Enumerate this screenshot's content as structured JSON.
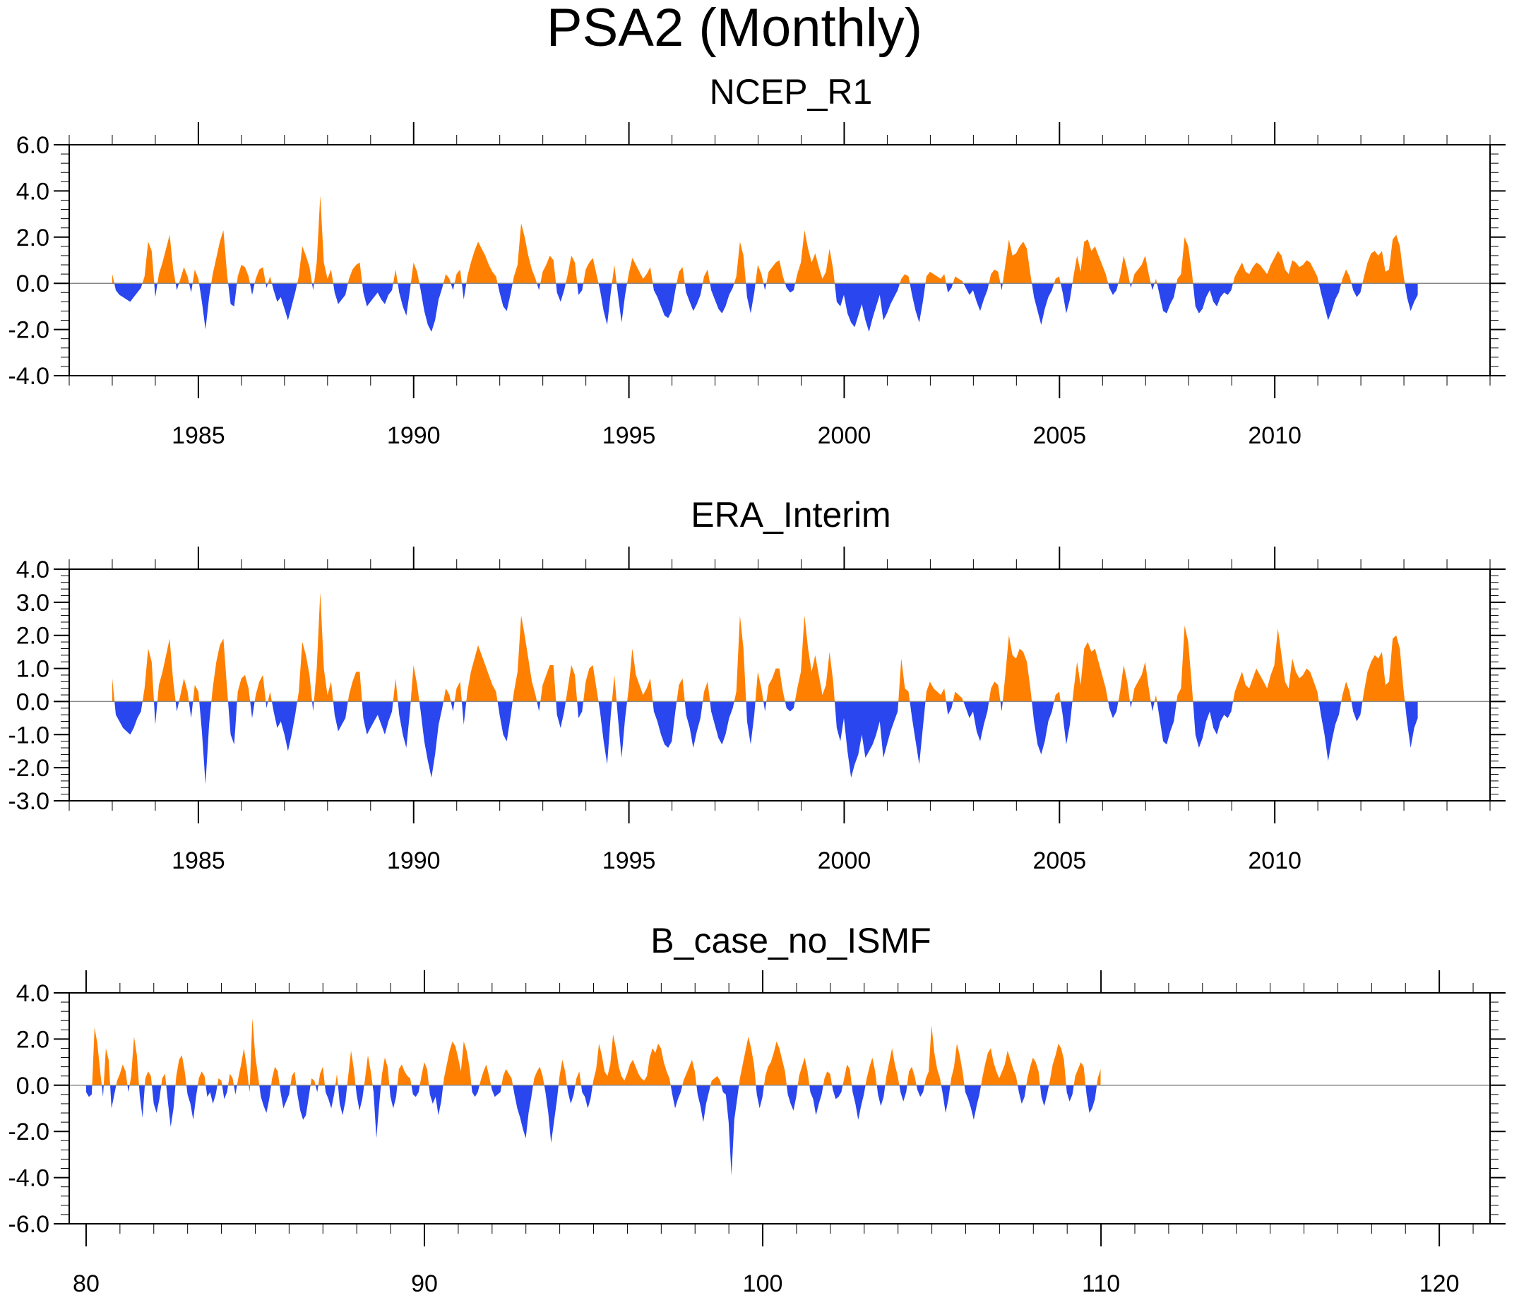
{
  "figure_title": "PSA2 (Monthly)",
  "colors": {
    "positive": "#ff8000",
    "negative": "#2a46ee",
    "frame": "#000000"
  },
  "chart_data": [
    {
      "type": "area",
      "title": "NCEP_R1",
      "xlabel": "",
      "ylabel": "",
      "xlim": [
        1982.0,
        2015.0
      ],
      "ylim": [
        -4.0,
        6.0
      ],
      "yticks": [
        6.0,
        4.0,
        2.0,
        0.0,
        -2.0,
        -4.0
      ],
      "ytick_labels": [
        "6.0",
        "4.0",
        "2.0",
        "0.0",
        "-2.0",
        "-4.0"
      ],
      "xticks": [
        1985,
        1990,
        1995,
        2000,
        2005,
        2010
      ],
      "xtick_labels": [
        "1985",
        "1990",
        "1995",
        "2000",
        "2005",
        "2010"
      ],
      "fill_above_zero": "positive",
      "fill_below_zero": "negative",
      "x_start": 1983.0,
      "x_step": 0.0833,
      "values": [
        0.4,
        -0.3,
        -0.5,
        -0.6,
        -0.7,
        -0.8,
        -0.6,
        -0.4,
        -0.2,
        0.3,
        1.8,
        1.4,
        -0.6,
        0.4,
        0.9,
        1.5,
        2.1,
        0.6,
        -0.3,
        0.2,
        0.7,
        0.3,
        -0.4,
        0.6,
        0.2,
        -0.8,
        -2.0,
        -0.6,
        0.4,
        1.1,
        1.8,
        2.3,
        0.4,
        -0.9,
        -1.0,
        0.3,
        0.8,
        0.7,
        0.3,
        -0.5,
        0.2,
        0.6,
        0.7,
        -0.2,
        0.3,
        -0.3,
        -0.8,
        -0.6,
        -1.1,
        -1.6,
        -1.0,
        -0.4,
        0.3,
        1.6,
        1.2,
        0.7,
        -0.3,
        0.9,
        3.8,
        0.9,
        0.2,
        0.6,
        -0.4,
        -0.9,
        -0.7,
        -0.5,
        0.2,
        0.6,
        0.8,
        0.9,
        -0.4,
        -1.0,
        -0.8,
        -0.6,
        -0.4,
        -0.7,
        -0.9,
        -0.5,
        -0.3,
        0.6,
        -0.4,
        -1.0,
        -1.4,
        -0.3,
        0.9,
        0.5,
        -0.3,
        -1.2,
        -1.8,
        -2.1,
        -1.6,
        -0.7,
        -0.2,
        0.4,
        0.2,
        -0.3,
        0.4,
        0.6,
        -0.7,
        0.3,
        0.9,
        1.4,
        1.8,
        1.5,
        1.2,
        0.8,
        0.5,
        0.3,
        -0.4,
        -1.0,
        -1.2,
        -0.5,
        0.3,
        0.8,
        2.6,
        2.0,
        1.2,
        0.6,
        0.2,
        -0.3,
        0.5,
        0.8,
        1.2,
        1.0,
        -0.4,
        -0.8,
        -0.3,
        0.4,
        1.2,
        0.9,
        -0.5,
        -0.3,
        0.6,
        0.9,
        1.1,
        0.4,
        -0.3,
        -1.2,
        -1.8,
        -0.4,
        0.8,
        -0.5,
        -1.7,
        -0.5,
        0.4,
        1.1,
        0.8,
        0.5,
        0.2,
        0.4,
        0.7,
        -0.3,
        -0.6,
        -1.0,
        -1.4,
        -1.5,
        -1.2,
        -0.3,
        0.5,
        0.7,
        -0.4,
        -0.8,
        -1.2,
        -0.9,
        -0.5,
        0.3,
        0.6,
        -0.3,
        -0.7,
        -1.1,
        -1.3,
        -1.0,
        -0.5,
        -0.2,
        0.3,
        1.8,
        1.2,
        -0.6,
        -1.3,
        -0.4,
        0.8,
        0.4,
        -0.3,
        0.5,
        0.7,
        0.9,
        1.0,
        0.3,
        -0.2,
        -0.4,
        -0.3,
        0.4,
        0.9,
        2.3,
        1.5,
        0.9,
        1.3,
        0.7,
        0.2,
        0.5,
        1.5,
        0.6,
        -0.8,
        -1.0,
        -0.5,
        -1.3,
        -1.7,
        -1.9,
        -1.4,
        -0.9,
        -1.6,
        -2.1,
        -1.5,
        -1.0,
        -0.5,
        -1.6,
        -1.3,
        -0.9,
        -0.6,
        -0.3,
        0.2,
        0.4,
        0.3,
        -0.5,
        -1.2,
        -1.7,
        -0.8,
        0.3,
        0.5,
        0.4,
        0.3,
        0.2,
        0.4,
        -0.4,
        -0.2,
        0.3,
        0.2,
        0.1,
        -0.2,
        -0.5,
        -0.3,
        -0.8,
        -1.2,
        -0.7,
        -0.3,
        0.4,
        0.6,
        0.5,
        -0.3,
        0.8,
        1.9,
        1.2,
        1.3,
        1.6,
        1.8,
        1.5,
        0.4,
        -0.6,
        -1.2,
        -1.8,
        -1.1,
        -0.6,
        -0.3,
        0.2,
        0.3,
        -0.4,
        -1.3,
        -0.7,
        0.3,
        1.2,
        0.5,
        1.8,
        1.9,
        1.4,
        1.6,
        1.2,
        0.8,
        0.4,
        -0.2,
        -0.5,
        -0.3,
        0.3,
        1.2,
        0.6,
        -0.2,
        0.4,
        0.6,
        0.8,
        1.2,
        0.4,
        -0.3,
        0.2,
        -0.5,
        -1.2,
        -1.3,
        -0.9,
        -0.6,
        0.2,
        0.4,
        2.0,
        1.6,
        0.5,
        -1.0,
        -1.3,
        -1.1,
        -0.6,
        -0.3,
        -0.8,
        -1.0,
        -0.6,
        -0.4,
        -0.5,
        -0.3,
        0.3,
        0.6,
        0.9,
        0.5,
        0.4,
        0.7,
        0.9,
        0.8,
        0.6,
        0.4,
        0.8,
        1.1,
        1.4,
        1.2,
        0.6,
        0.4,
        1.0,
        0.9,
        0.7,
        0.8,
        1.0,
        0.9,
        0.6,
        0.3,
        -0.4,
        -1.0,
        -1.6,
        -1.2,
        -0.7,
        -0.4,
        0.2,
        0.6,
        0.3,
        -0.3,
        -0.6,
        -0.4,
        0.3,
        0.9,
        1.3,
        1.4,
        1.2,
        1.4,
        0.5,
        0.6,
        1.9,
        2.1,
        1.6,
        0.4,
        -0.6,
        -1.2,
        -0.8,
        -0.5
      ]
    },
    {
      "type": "area",
      "title": "ERA_Interim",
      "xlabel": "",
      "ylabel": "",
      "xlim": [
        1982.0,
        2015.0
      ],
      "ylim": [
        -3.0,
        4.0
      ],
      "yticks": [
        4.0,
        3.0,
        2.0,
        1.0,
        0.0,
        -1.0,
        -2.0,
        -3.0
      ],
      "ytick_labels": [
        "4.0",
        "3.0",
        "2.0",
        "1.0",
        "0.0",
        "-1.0",
        "-2.0",
        "-3.0"
      ],
      "xticks": [
        1985,
        1990,
        1995,
        2000,
        2005,
        2010
      ],
      "xtick_labels": [
        "1985",
        "1990",
        "1995",
        "2000",
        "2005",
        "2010"
      ],
      "fill_above_zero": "positive",
      "fill_below_zero": "negative",
      "x_start": 1983.0,
      "x_step": 0.0833,
      "values": [
        0.7,
        -0.4,
        -0.6,
        -0.8,
        -0.9,
        -1.0,
        -0.8,
        -0.5,
        -0.3,
        0.4,
        1.6,
        1.2,
        -0.7,
        0.5,
        0.9,
        1.4,
        1.9,
        0.6,
        -0.3,
        0.2,
        0.7,
        0.3,
        -0.5,
        0.5,
        0.3,
        -0.9,
        -2.5,
        -0.7,
        0.4,
        1.2,
        1.7,
        1.9,
        0.4,
        -1.0,
        -1.3,
        0.3,
        0.7,
        0.8,
        0.4,
        -0.5,
        0.2,
        0.6,
        0.8,
        -0.2,
        0.3,
        -0.3,
        -0.8,
        -0.6,
        -1.0,
        -1.5,
        -1.0,
        -0.4,
        0.3,
        1.8,
        1.4,
        0.8,
        -0.3,
        1.0,
        3.3,
        1.0,
        0.2,
        0.6,
        -0.4,
        -0.9,
        -0.7,
        -0.5,
        0.2,
        0.6,
        0.9,
        0.9,
        -0.5,
        -1.0,
        -0.8,
        -0.6,
        -0.4,
        -0.7,
        -1.0,
        -0.6,
        -0.3,
        0.7,
        -0.4,
        -1.0,
        -1.4,
        -0.3,
        1.1,
        0.5,
        -0.3,
        -1.2,
        -1.8,
        -2.3,
        -1.6,
        -0.7,
        -0.2,
        0.4,
        0.2,
        -0.3,
        0.4,
        0.6,
        -0.7,
        0.3,
        0.9,
        1.3,
        1.7,
        1.4,
        1.1,
        0.8,
        0.5,
        0.3,
        -0.4,
        -1.0,
        -1.2,
        -0.5,
        0.3,
        0.9,
        2.6,
        2.0,
        1.3,
        0.6,
        0.2,
        -0.3,
        0.5,
        0.8,
        1.1,
        1.1,
        -0.4,
        -0.8,
        -0.3,
        0.4,
        1.1,
        0.8,
        -0.5,
        -0.3,
        0.6,
        1.0,
        1.1,
        0.4,
        -0.3,
        -1.2,
        -1.9,
        -0.4,
        0.8,
        -0.5,
        -1.7,
        -0.5,
        0.4,
        1.6,
        0.8,
        0.5,
        0.2,
        0.4,
        0.7,
        -0.3,
        -0.6,
        -1.0,
        -1.3,
        -1.4,
        -1.2,
        -0.3,
        0.5,
        0.7,
        -0.4,
        -0.8,
        -1.4,
        -0.9,
        -0.5,
        0.3,
        0.6,
        -0.3,
        -0.7,
        -1.1,
        -1.3,
        -1.0,
        -0.5,
        -0.2,
        0.3,
        2.6,
        1.6,
        -0.6,
        -1.3,
        -0.4,
        0.9,
        0.4,
        -0.3,
        0.5,
        0.7,
        1.0,
        1.0,
        0.3,
        -0.2,
        -0.3,
        -0.2,
        0.4,
        0.9,
        2.6,
        1.6,
        0.9,
        1.4,
        0.8,
        0.2,
        0.5,
        1.5,
        0.6,
        -0.8,
        -1.2,
        -0.5,
        -1.5,
        -2.3,
        -1.9,
        -1.6,
        -1.0,
        -1.7,
        -1.5,
        -1.3,
        -1.0,
        -0.6,
        -1.7,
        -1.3,
        -0.9,
        -0.6,
        -0.3,
        1.3,
        0.4,
        0.3,
        -0.5,
        -1.2,
        -1.9,
        -0.8,
        0.3,
        0.6,
        0.4,
        0.3,
        0.2,
        0.4,
        -0.4,
        -0.2,
        0.3,
        0.2,
        0.1,
        -0.2,
        -0.5,
        -0.3,
        -0.9,
        -1.2,
        -0.7,
        -0.3,
        0.4,
        0.6,
        0.5,
        -0.3,
        0.8,
        2.0,
        1.4,
        1.3,
        1.6,
        1.5,
        1.2,
        0.4,
        -0.6,
        -1.3,
        -1.6,
        -1.2,
        -0.6,
        -0.3,
        0.2,
        0.3,
        -0.4,
        -1.3,
        -0.7,
        0.3,
        1.2,
        0.5,
        1.6,
        1.8,
        1.5,
        1.6,
        1.2,
        0.8,
        0.4,
        -0.2,
        -0.5,
        -0.3,
        0.3,
        1.1,
        0.6,
        -0.2,
        0.4,
        0.6,
        0.8,
        1.2,
        0.4,
        -0.3,
        0.2,
        -0.5,
        -1.2,
        -1.3,
        -0.9,
        -0.6,
        0.2,
        0.4,
        2.3,
        1.8,
        0.5,
        -1.0,
        -1.4,
        -1.1,
        -0.6,
        -0.3,
        -0.8,
        -1.0,
        -0.6,
        -0.4,
        -0.5,
        -0.3,
        0.3,
        0.6,
        0.9,
        0.5,
        0.4,
        0.7,
        1.0,
        0.8,
        0.6,
        0.4,
        0.8,
        1.1,
        2.2,
        1.4,
        0.6,
        0.4,
        1.3,
        0.9,
        0.7,
        0.8,
        1.0,
        0.9,
        0.6,
        0.3,
        -0.4,
        -1.0,
        -1.8,
        -1.2,
        -0.7,
        -0.4,
        0.2,
        0.6,
        0.3,
        -0.3,
        -0.6,
        -0.4,
        0.3,
        0.9,
        1.2,
        1.4,
        1.3,
        1.5,
        0.5,
        0.6,
        1.9,
        2.0,
        1.6,
        0.4,
        -0.6,
        -1.4,
        -0.8,
        -0.5
      ]
    },
    {
      "type": "area",
      "title": "B_case_no_ISMF",
      "xlabel": "",
      "ylabel": "",
      "xlim": [
        79.5,
        121.5
      ],
      "ylim": [
        -6.0,
        4.0
      ],
      "yticks": [
        4.0,
        2.0,
        0.0,
        -2.0,
        -4.0,
        -6.0
      ],
      "ytick_labels": [
        "4.0",
        "2.0",
        "0.0",
        "-2.0",
        "-4.0",
        "-6.0"
      ],
      "xticks": [
        80,
        90,
        100,
        110,
        120
      ],
      "xtick_labels": [
        "80",
        "90",
        "100",
        "110",
        "120"
      ],
      "fill_above_zero": "positive",
      "fill_below_zero": "negative",
      "x_start": 80.0,
      "x_step": 0.0833,
      "values": [
        -0.3,
        -0.5,
        -0.4,
        2.5,
        1.8,
        0.6,
        -0.5,
        1.6,
        1.1,
        -1.0,
        -0.4,
        0.2,
        0.5,
        0.9,
        0.6,
        -0.3,
        0.4,
        2.1,
        1.3,
        -0.4,
        -1.4,
        0.3,
        0.6,
        0.4,
        -0.8,
        -1.2,
        -0.6,
        0.3,
        0.5,
        -0.7,
        -1.8,
        -1.0,
        0.4,
        1.1,
        1.3,
        0.6,
        -0.4,
        -0.8,
        -1.5,
        -0.5,
        0.3,
        0.6,
        0.4,
        -0.5,
        -0.3,
        -0.8,
        -0.4,
        0.3,
        0.2,
        -0.6,
        -0.3,
        0.5,
        0.3,
        -0.4,
        0.3,
        0.9,
        1.6,
        0.8,
        -0.3,
        2.9,
        1.3,
        0.4,
        -0.5,
        -0.9,
        -1.2,
        -0.6,
        0.3,
        0.8,
        0.6,
        -0.3,
        -1.0,
        -0.7,
        -0.4,
        0.4,
        0.6,
        -0.4,
        -1.1,
        -1.5,
        -1.3,
        -0.5,
        0.3,
        0.2,
        -0.3,
        0.5,
        0.8,
        -0.3,
        -0.6,
        -1.0,
        -0.4,
        0.5,
        -0.8,
        -1.3,
        -0.7,
        0.4,
        1.5,
        0.7,
        -0.4,
        -1.1,
        -0.6,
        0.3,
        1.3,
        0.6,
        -0.3,
        -2.3,
        -0.8,
        0.5,
        1.2,
        0.8,
        -0.5,
        -1.0,
        -0.5,
        0.7,
        0.9,
        0.6,
        0.4,
        0.3,
        -0.4,
        -0.5,
        -0.3,
        0.4,
        1.0,
        0.7,
        -0.4,
        -0.8,
        -0.5,
        -1.3,
        -0.7,
        0.3,
        0.9,
        1.5,
        1.9,
        1.7,
        1.2,
        0.6,
        1.9,
        1.5,
        0.8,
        -0.3,
        -0.5,
        -0.3,
        0.2,
        0.6,
        0.9,
        0.4,
        -0.2,
        -0.5,
        -0.4,
        -0.3,
        0.4,
        0.7,
        0.5,
        0.3,
        -0.4,
        -1.0,
        -1.4,
        -1.9,
        -2.3,
        -1.2,
        -0.5,
        0.3,
        0.6,
        0.8,
        0.4,
        -0.3,
        -1.2,
        -2.5,
        -1.6,
        -0.7,
        0.4,
        1.1,
        0.6,
        -0.3,
        -0.8,
        -0.4,
        0.3,
        0.6,
        -0.3,
        -0.5,
        -1.0,
        -0.6,
        0.2,
        0.7,
        1.8,
        1.3,
        0.6,
        0.4,
        0.9,
        2.2,
        1.6,
        0.8,
        0.4,
        0.2,
        0.5,
        0.9,
        1.1,
        0.8,
        0.5,
        0.3,
        0.2,
        0.4,
        1.2,
        1.6,
        1.4,
        1.8,
        1.6,
        1.0,
        0.6,
        0.3,
        -0.4,
        -1.0,
        -0.6,
        -0.3,
        0.2,
        0.5,
        0.8,
        1.1,
        0.6,
        -0.4,
        -0.9,
        -1.6,
        -0.8,
        -0.3,
        0.2,
        0.3,
        0.4,
        0.2,
        -0.3,
        -0.4,
        -1.6,
        -3.9,
        -1.5,
        -0.6,
        0.3,
        0.9,
        1.5,
        2.1,
        1.6,
        0.9,
        -0.4,
        -1.0,
        -0.5,
        0.4,
        0.8,
        1.0,
        1.4,
        1.9,
        1.6,
        1.1,
        0.6,
        -0.4,
        -0.8,
        -1.1,
        -0.5,
        0.4,
        0.8,
        1.2,
        0.6,
        -0.3,
        -0.6,
        -1.3,
        -0.8,
        -0.4,
        0.3,
        0.6,
        0.5,
        -0.2,
        -0.6,
        -0.5,
        -0.3,
        0.3,
        0.9,
        0.7,
        -0.3,
        -0.8,
        -1.5,
        -0.9,
        -0.4,
        0.3,
        0.8,
        1.2,
        0.6,
        -0.4,
        -0.9,
        -0.5,
        0.4,
        1.0,
        1.6,
        0.9,
        0.4,
        -0.3,
        -0.7,
        -0.3,
        0.6,
        0.8,
        0.4,
        -0.2,
        -0.5,
        -0.3,
        0.3,
        0.6,
        2.6,
        1.4,
        0.7,
        0.3,
        -0.4,
        -1.2,
        -0.6,
        0.3,
        0.8,
        1.8,
        1.3,
        0.6,
        -0.3,
        -0.6,
        -1.0,
        -1.5,
        -0.9,
        -0.4,
        0.3,
        0.9,
        1.4,
        1.6,
        1.0,
        0.6,
        0.3,
        0.6,
        0.9,
        1.5,
        1.1,
        0.7,
        0.4,
        -0.3,
        -0.8,
        -0.5,
        0.3,
        0.8,
        1.2,
        1.0,
        0.6,
        -0.5,
        -0.9,
        -0.4,
        0.2,
        0.9,
        1.3,
        1.8,
        1.6,
        1.1,
        -0.3,
        -0.7,
        -0.4,
        0.4,
        0.7,
        1.0,
        0.8,
        -0.4,
        -1.2,
        -1.0,
        -0.6,
        0.3,
        0.7
      ]
    }
  ]
}
